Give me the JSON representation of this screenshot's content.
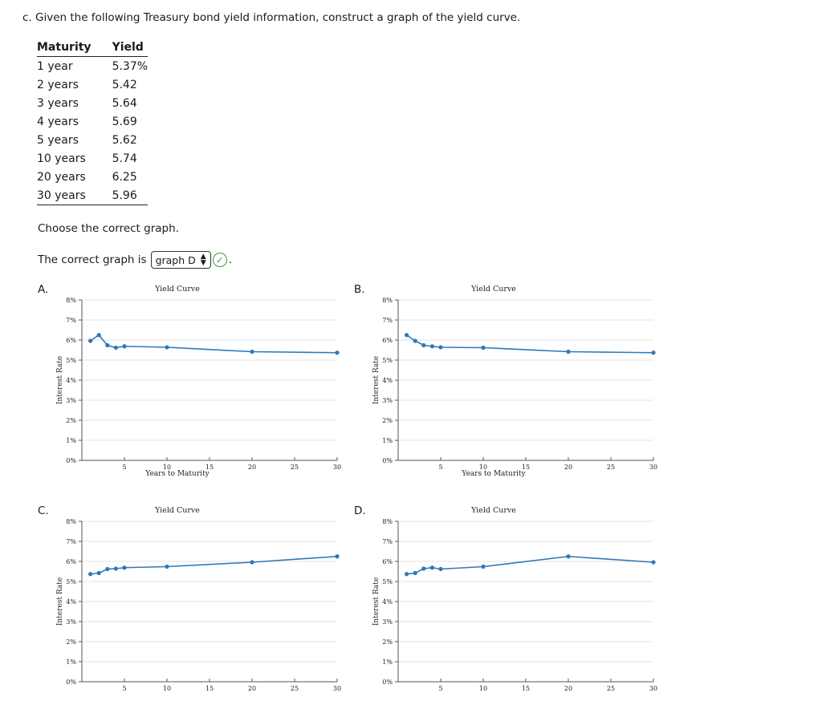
{
  "question": "c. Given the following Treasury bond yield information, construct a graph of the yield curve.",
  "table": {
    "headers": [
      "Maturity",
      "Yield"
    ],
    "rows": [
      [
        "1 year",
        "5.37%"
      ],
      [
        "2 years",
        "5.42"
      ],
      [
        "3 years",
        "5.64"
      ],
      [
        "4 years",
        "5.69"
      ],
      [
        "5 years",
        "5.62"
      ],
      [
        "10 years",
        "5.74"
      ],
      [
        "20 years",
        "6.25"
      ],
      [
        "30 years",
        "5.96"
      ]
    ]
  },
  "choose_text": "Choose the correct graph.",
  "answer": {
    "prefix": "The correct graph is",
    "selected": "graph D",
    "suffix": "."
  },
  "panel_letters": [
    "A.",
    "B.",
    "C.",
    "D."
  ],
  "line_color": "#2e78b8",
  "chart_data": [
    {
      "type": "line",
      "title": "Yield Curve",
      "xlabel": "Years to Maturity",
      "ylabel": "Interest Rate",
      "xlim": [
        0,
        30
      ],
      "ylim": [
        0,
        8
      ],
      "xticks": [
        5,
        10,
        15,
        20,
        25,
        30
      ],
      "yticks": [
        "0%",
        "1%",
        "2%",
        "3%",
        "4%",
        "5%",
        "6%",
        "7%",
        "8%"
      ],
      "x": [
        1,
        2,
        3,
        4,
        5,
        10,
        20,
        30
      ],
      "y": [
        5.96,
        6.25,
        5.74,
        5.62,
        5.69,
        5.64,
        5.42,
        5.37
      ]
    },
    {
      "type": "line",
      "title": "Yield Curve",
      "xlabel": "Years to Maturity",
      "ylabel": "Interest Rate",
      "xlim": [
        0,
        30
      ],
      "ylim": [
        0,
        8
      ],
      "xticks": [
        5,
        10,
        15,
        20,
        25,
        30
      ],
      "yticks": [
        "0%",
        "1%",
        "2%",
        "3%",
        "4%",
        "5%",
        "6%",
        "7%",
        "8%"
      ],
      "x": [
        1,
        2,
        3,
        4,
        5,
        10,
        20,
        30
      ],
      "y": [
        6.25,
        5.96,
        5.74,
        5.69,
        5.64,
        5.62,
        5.42,
        5.37
      ]
    },
    {
      "type": "line",
      "title": "Yield Curve",
      "xlabel": "",
      "ylabel": "Interest Rate",
      "xlim": [
        0,
        30
      ],
      "ylim": [
        0,
        8
      ],
      "xticks": [
        5,
        10,
        15,
        20,
        25,
        30
      ],
      "yticks": [
        "0%",
        "1%",
        "2%",
        "3%",
        "4%",
        "5%",
        "6%",
        "7%",
        "8%"
      ],
      "x": [
        1,
        2,
        3,
        4,
        5,
        10,
        20,
        30
      ],
      "y": [
        5.37,
        5.42,
        5.62,
        5.64,
        5.69,
        5.74,
        5.96,
        6.25
      ]
    },
    {
      "type": "line",
      "title": "Yield Curve",
      "xlabel": "",
      "ylabel": "Interest Rate",
      "xlim": [
        0,
        30
      ],
      "ylim": [
        0,
        8
      ],
      "xticks": [
        5,
        10,
        15,
        20,
        25,
        30
      ],
      "yticks": [
        "0%",
        "1%",
        "2%",
        "3%",
        "4%",
        "5%",
        "6%",
        "7%",
        "8%"
      ],
      "x": [
        1,
        2,
        3,
        4,
        5,
        10,
        20,
        30
      ],
      "y": [
        5.37,
        5.42,
        5.64,
        5.69,
        5.62,
        5.74,
        6.25,
        5.96
      ]
    }
  ]
}
